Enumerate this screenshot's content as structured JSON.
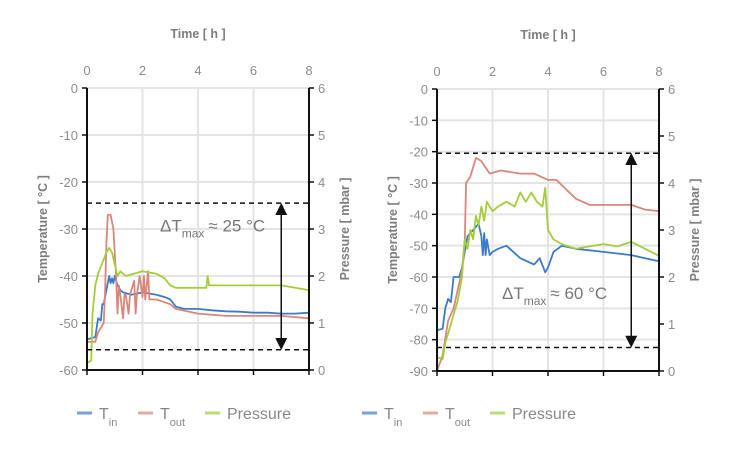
{
  "colors": {
    "t_in": "#3b7bc8",
    "t_out": "#d8877a",
    "pressure": "#a5cc3c",
    "grid": "#e4e4e4",
    "axis": "#111111"
  },
  "legend": {
    "items": [
      {
        "base": "T",
        "sub": "in",
        "series": "t_in"
      },
      {
        "base": "T",
        "sub": "out",
        "series": "t_out"
      },
      {
        "base": "Pressure",
        "sub": "",
        "series": "pressure"
      }
    ],
    "placement": "bottom"
  },
  "chart_data": [
    {
      "type": "line",
      "xlabel": "Time [ h ]",
      "ylabel": "Temperature [ °C ]",
      "y2label": "Pressure [ mbar ]",
      "xlim": [
        0,
        8
      ],
      "ylim": [
        -60,
        0
      ],
      "y2lim": [
        0,
        6
      ],
      "xticks": [
        "0",
        "2",
        "4",
        "6",
        "8"
      ],
      "yticks": [
        "0",
        "-10",
        "-20",
        "-30",
        "-40",
        "-50",
        "-60"
      ],
      "y2ticks": [
        "6",
        "5",
        "4",
        "3",
        "2",
        "1",
        "0"
      ],
      "grid": true,
      "annotation": {
        "delta": "ΔT",
        "sub": "max",
        "text": "≈ 25 °C",
        "upper": -24.5,
        "lower": -55.7,
        "arrow_x": 7.0
      },
      "series": [
        {
          "key": "t_in",
          "axis": "left",
          "x": [
            0,
            0.3,
            0.4,
            0.5,
            0.55,
            0.6,
            0.7,
            0.8,
            0.85,
            0.9,
            0.95,
            1.0,
            1.1,
            1.2,
            1.3,
            1.6,
            2.0,
            2.5,
            2.8,
            3.0,
            3.2,
            3.5,
            4,
            4.5,
            5,
            5.5,
            6,
            6.5,
            7,
            7.5,
            8
          ],
          "y": [
            -53.5,
            -53,
            -49,
            -49.5,
            -46,
            -46,
            -43,
            -40,
            -41.5,
            -40.5,
            -41.5,
            -40,
            -42,
            -43,
            -43.5,
            -44,
            -43.5,
            -44,
            -44.5,
            -45,
            -46.5,
            -47,
            -47,
            -47.3,
            -47.5,
            -47.6,
            -47.8,
            -47.8,
            -48,
            -48,
            -47.8
          ]
        },
        {
          "key": "t_out",
          "axis": "left",
          "x": [
            0,
            0.3,
            0.4,
            0.6,
            0.65,
            0.7,
            0.75,
            0.85,
            0.95,
            1.05,
            1.1,
            1.15,
            1.2,
            1.3,
            1.35,
            1.4,
            1.5,
            1.55,
            1.7,
            1.75,
            1.8,
            1.9,
            2.0,
            2.05,
            2.1,
            2.2,
            2.25,
            2.3,
            2.5,
            3.0,
            3.2,
            4,
            5,
            6,
            7,
            8
          ],
          "y": [
            -54,
            -54,
            -52,
            -50,
            -44,
            -33,
            -27,
            -27,
            -30,
            -40,
            -48,
            -42,
            -44,
            -49,
            -44,
            -44,
            -48,
            -44,
            -41,
            -48,
            -44,
            -40,
            -44.5,
            -40,
            -45,
            -39,
            -45,
            -45,
            -45,
            -46,
            -47,
            -48,
            -48.5,
            -48.5,
            -48.5,
            -49
          ]
        },
        {
          "key": "pressure",
          "axis": "right",
          "x": [
            0,
            0.15,
            0.2,
            0.3,
            0.4,
            0.5,
            0.7,
            0.8,
            0.9,
            1.1,
            1.2,
            1.4,
            2.0,
            2.5,
            2.8,
            3.0,
            3.2,
            4,
            4.3,
            4.35,
            4.4,
            5,
            6,
            7,
            8
          ],
          "y": [
            0.15,
            0.2,
            1.2,
            1.8,
            2.05,
            2.2,
            2.5,
            2.6,
            2.5,
            2.0,
            2.1,
            2.0,
            2.1,
            2.05,
            1.95,
            1.8,
            1.75,
            1.75,
            1.75,
            2.0,
            1.8,
            1.8,
            1.8,
            1.8,
            1.7
          ]
        }
      ]
    },
    {
      "type": "line",
      "xlabel": "Time [ h ]",
      "ylabel": "Temperature [ °C ]",
      "y2label": "Pressure [ mbar ]",
      "xlim": [
        0,
        8
      ],
      "ylim": [
        -90,
        0
      ],
      "y2lim": [
        0,
        6
      ],
      "xticks": [
        "0",
        "2",
        "4",
        "6",
        "8"
      ],
      "yticks": [
        "0",
        "-10",
        "-20",
        "-30",
        "-40",
        "-50",
        "-60",
        "-70",
        "-80",
        "-90"
      ],
      "y2ticks": [
        "6",
        "5",
        "4",
        "3",
        "2",
        "1",
        "0"
      ],
      "grid": true,
      "annotation": {
        "delta": "ΔT",
        "sub": "max",
        "text": "≈ 60 °C",
        "upper": -20.5,
        "lower": -82.5,
        "arrow_x": 7.0
      },
      "series": [
        {
          "key": "t_in",
          "axis": "left",
          "x": [
            0,
            0.2,
            0.3,
            0.4,
            0.5,
            0.6,
            0.8,
            0.9,
            1.1,
            1.3,
            1.5,
            1.6,
            1.65,
            1.7,
            1.75,
            1.8,
            1.9,
            2.0,
            2.2,
            2.5,
            3.0,
            3.5,
            3.7,
            3.9,
            4.0,
            4.2,
            4.5,
            5,
            6,
            7,
            7.5,
            8
          ],
          "y": [
            -77,
            -76.5,
            -70,
            -67,
            -68,
            -60,
            -60,
            -57,
            -47,
            -45,
            -43,
            -47,
            -53,
            -46,
            -53,
            -48,
            -53,
            -52,
            -51,
            -50,
            -54,
            -56,
            -54,
            -58.5,
            -57,
            -52,
            -50,
            -51,
            -52,
            -53,
            -54,
            -55
          ]
        },
        {
          "key": "t_out",
          "axis": "left",
          "x": [
            0,
            0.2,
            0.4,
            0.6,
            0.9,
            1.0,
            1.05,
            1.2,
            1.4,
            1.6,
            1.9,
            2.3,
            3,
            3.5,
            4,
            4.3,
            5,
            5.5,
            6,
            7,
            7.5,
            8
          ],
          "y": [
            -90,
            -85,
            -74,
            -70,
            -58,
            -48,
            -30,
            -28,
            -22,
            -23,
            -27,
            -26,
            -27,
            -27,
            -29,
            -29,
            -35,
            -37,
            -37,
            -37,
            -38.5,
            -39
          ]
        },
        {
          "key": "pressure",
          "axis": "right",
          "x": [
            0,
            0.2,
            0.3,
            0.45,
            0.6,
            0.75,
            0.9,
            1.0,
            1.1,
            1.2,
            1.3,
            1.4,
            1.5,
            1.6,
            1.7,
            1.8,
            2.0,
            2.2,
            2.5,
            2.8,
            3.0,
            3.2,
            3.4,
            3.6,
            3.8,
            3.9,
            4.0,
            4.2,
            4.5,
            5,
            5.5,
            6,
            6.5,
            7,
            7.5,
            8
          ],
          "y": [
            0.3,
            0.25,
            0.6,
            0.9,
            1.2,
            1.5,
            2.0,
            2.8,
            2.6,
            3.0,
            2.8,
            3.3,
            3.1,
            3.5,
            3.2,
            3.6,
            3.4,
            3.5,
            3.6,
            3.5,
            3.8,
            3.6,
            3.8,
            3.6,
            3.5,
            3.9,
            3.0,
            2.8,
            2.7,
            2.6,
            2.65,
            2.7,
            2.65,
            2.75,
            2.6,
            2.45
          ]
        }
      ]
    }
  ]
}
